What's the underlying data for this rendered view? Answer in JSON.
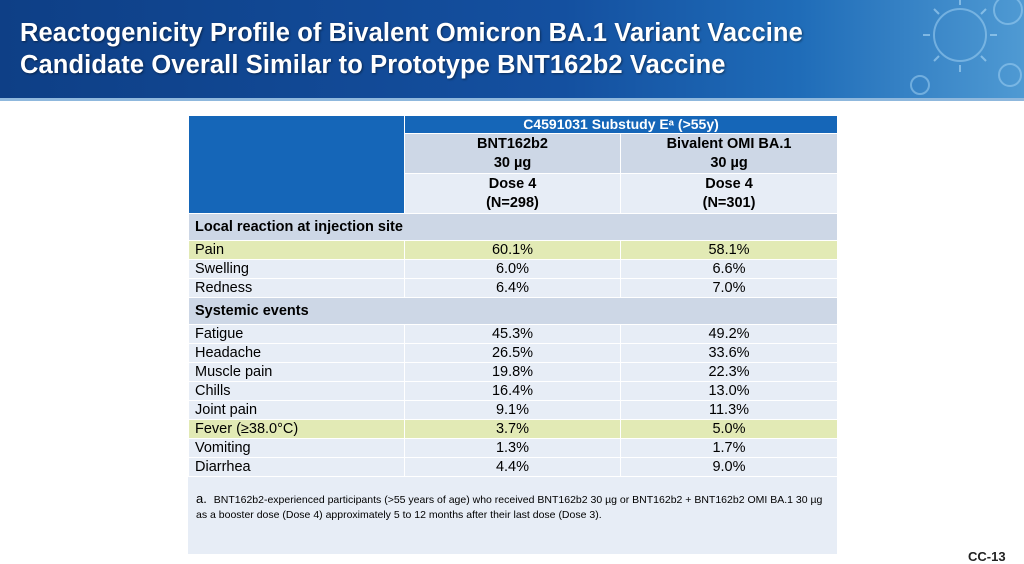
{
  "slide": {
    "title_line1": "Reactogenicity Profile of Bivalent Omicron BA.1 Variant Vaccine",
    "title_line2": "Candidate Overall Similar to Prototype BNT162b2 Vaccine",
    "page_number": "CC-13"
  },
  "table": {
    "study_header": "C4591031 Substudy Eᵃ (>55y)",
    "columns": [
      {
        "product": "BNT162b2",
        "dose_amount": "30 µg",
        "dose": "Dose 4",
        "n": "(N=298)"
      },
      {
        "product": "Bivalent OMI BA.1",
        "dose_amount": "30 µg",
        "dose": "Dose 4",
        "n": "(N=301)"
      }
    ],
    "sections": [
      {
        "title": "Local reaction at injection site",
        "rows": [
          {
            "label": "Pain",
            "values": [
              "60.1%",
              "58.1%"
            ],
            "highlight": true
          },
          {
            "label": "Swelling",
            "values": [
              "6.0%",
              "6.6%"
            ],
            "highlight": false
          },
          {
            "label": "Redness",
            "values": [
              "6.4%",
              "7.0%"
            ],
            "highlight": false
          }
        ]
      },
      {
        "title": "Systemic events",
        "rows": [
          {
            "label": "Fatigue",
            "values": [
              "45.3%",
              "49.2%"
            ],
            "highlight": false
          },
          {
            "label": "Headache",
            "values": [
              "26.5%",
              "33.6%"
            ],
            "highlight": false
          },
          {
            "label": "Muscle pain",
            "values": [
              "19.8%",
              "22.3%"
            ],
            "highlight": false
          },
          {
            "label": "Chills",
            "values": [
              "16.4%",
              "13.0%"
            ],
            "highlight": false
          },
          {
            "label": "Joint pain",
            "values": [
              "9.1%",
              "11.3%"
            ],
            "highlight": false
          },
          {
            "label": "Fever (≥38.0°C)",
            "values": [
              "3.7%",
              "5.0%"
            ],
            "highlight": true
          },
          {
            "label": "Vomiting",
            "values": [
              "1.3%",
              "1.7%"
            ],
            "highlight": false
          },
          {
            "label": "Diarrhea",
            "values": [
              "4.4%",
              "9.0%"
            ],
            "highlight": false
          }
        ]
      }
    ],
    "footnote_marker": "a.",
    "footnote_text": "BNT162b2-experienced participants (>55 years of age) who received BNT162b2 30 µg or BNT162b2 + BNT162b2 OMI BA.1 30 µg as a booster dose (Dose 4) approximately 5 to 12 months after their last dose (Dose 3)."
  },
  "colors": {
    "banner": "#1450a0",
    "header_blue": "#1566b8",
    "header_grey": "#cdd7e6",
    "row_bg": "#e7edf6",
    "highlight": "#e2eab5"
  },
  "decor": {
    "banner_art": "coronavirus-particle-icon"
  }
}
